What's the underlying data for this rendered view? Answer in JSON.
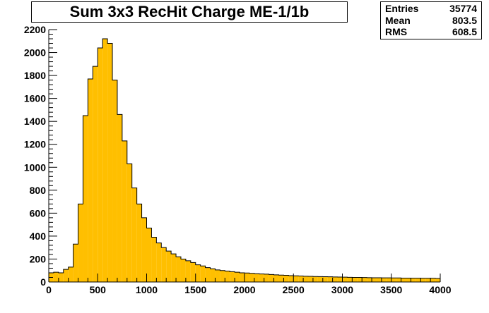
{
  "title": "Sum 3x3 RecHit Charge ME-1/1b",
  "stats": [
    {
      "label": "Entries",
      "value": "35774"
    },
    {
      "label": "Mean",
      "value": "803.5"
    },
    {
      "label": "RMS",
      "value": "608.5"
    }
  ],
  "chart_data": {
    "type": "bar",
    "subtype": "histogram",
    "fill_color": "#ffbf00",
    "line_color": "#000000",
    "x_bins": {
      "min": 0,
      "max": 4000,
      "width": 50,
      "count": 80
    },
    "xlim": [
      0,
      4000
    ],
    "ylim": [
      0,
      2200
    ],
    "x_ticks": [
      0,
      500,
      1000,
      1500,
      2000,
      2500,
      3000,
      3500,
      4000
    ],
    "y_ticks": [
      0,
      200,
      400,
      600,
      800,
      1000,
      1200,
      1400,
      1600,
      1800,
      2000,
      2200
    ],
    "values": [
      80,
      85,
      80,
      110,
      130,
      330,
      680,
      1450,
      1770,
      1880,
      2040,
      2120,
      2080,
      1760,
      1460,
      1230,
      1030,
      820,
      680,
      560,
      470,
      390,
      340,
      300,
      270,
      245,
      220,
      200,
      185,
      170,
      150,
      140,
      125,
      115,
      105,
      100,
      95,
      90,
      85,
      80,
      78,
      75,
      72,
      70,
      68,
      65,
      62,
      60,
      58,
      55,
      54,
      52,
      50,
      49,
      48,
      47,
      46,
      45,
      44,
      43,
      42,
      41,
      40,
      40,
      39,
      38,
      37,
      37,
      36,
      36,
      35,
      35,
      34,
      34,
      33,
      33,
      32,
      32,
      32,
      31
    ],
    "grid": false,
    "legend": "none"
  }
}
